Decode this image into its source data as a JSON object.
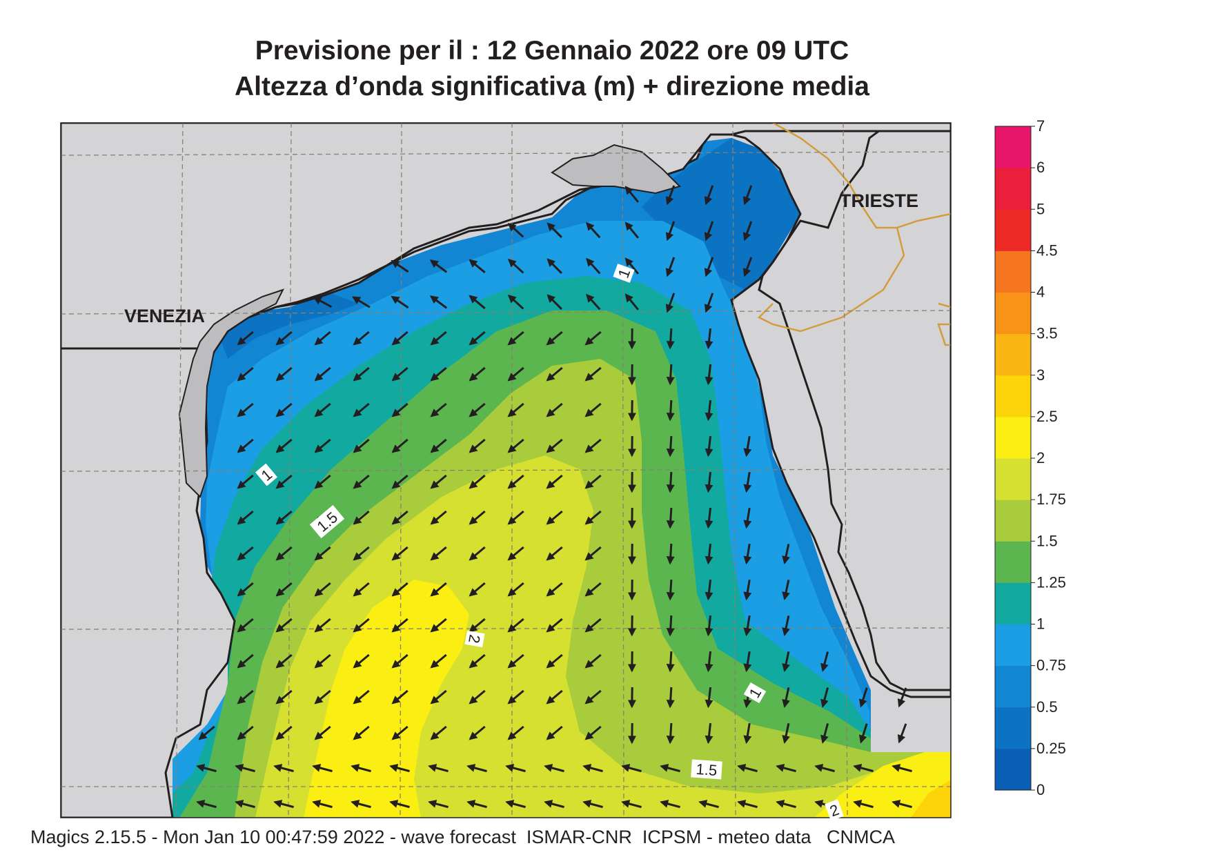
{
  "title": {
    "line1": "Previsione per il  :  12  Gennaio  2022   ore 09 UTC",
    "line2": "Altezza d’onda significativa (m) + direzione media"
  },
  "cities": [
    {
      "name": "VENEZIA"
    },
    {
      "name": "TRIESTE"
    }
  ],
  "contour_labels": [
    "1",
    "1",
    "1.5",
    "2",
    "1",
    "1.5",
    "2"
  ],
  "colorbar": {
    "ticks": [
      "0",
      "0.25",
      "0.5",
      "0.75",
      "1",
      "1.25",
      "1.5",
      "1.75",
      "2",
      "2.5",
      "3",
      "3.5",
      "4",
      "4.5",
      "5",
      "6",
      "7"
    ],
    "colors": [
      "#0a5fb4",
      "#0b73c2",
      "#1286d2",
      "#1b9ee3",
      "#12a9a0",
      "#5bb650",
      "#a8cc3c",
      "#d6e030",
      "#fbee13",
      "#fcd409",
      "#fbb512",
      "#f89318",
      "#f6761f",
      "#ee2a26",
      "#ea1f3c",
      "#e8166b"
    ]
  },
  "colors": {
    "land": "#d4d4d6",
    "coast": "#231f20",
    "border": "#d29c3c",
    "grid": "#8a8070"
  },
  "footer": "Magics 2.15.5 - Mon Jan 10 00:47:59 2022 - wave forecast  ISMAR-CNR  ICPSM - meteo data   CNMCA"
}
